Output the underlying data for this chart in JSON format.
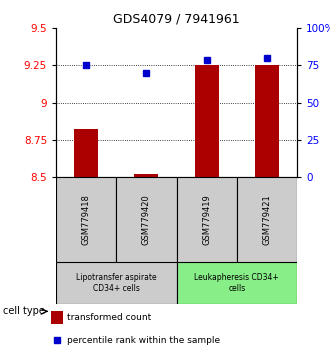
{
  "title": "GDS4079 / 7941961",
  "samples": [
    "GSM779418",
    "GSM779420",
    "GSM779419",
    "GSM779421"
  ],
  "bar_values": [
    8.82,
    8.52,
    9.25,
    9.25
  ],
  "percentile_values": [
    75,
    70,
    79,
    80
  ],
  "ylim_left": [
    8.5,
    9.5
  ],
  "ylim_right": [
    0,
    100
  ],
  "yticks_left": [
    8.5,
    8.75,
    9.0,
    9.25,
    9.5
  ],
  "yticks_right": [
    0,
    25,
    50,
    75,
    100
  ],
  "ytick_labels_left": [
    "8.5",
    "8.75",
    "9",
    "9.25",
    "9.5"
  ],
  "ytick_labels_right": [
    "0",
    "25",
    "50",
    "75",
    "100%"
  ],
  "hlines": [
    8.75,
    9.0,
    9.25
  ],
  "bar_color": "#aa0000",
  "dot_color": "#0000cc",
  "bar_bottom": 8.5,
  "groups": [
    {
      "label": "Lipotransfer aspirate\nCD34+ cells",
      "indices": [
        0,
        1
      ],
      "color": "#cccccc"
    },
    {
      "label": "Leukapheresis CD34+\ncells",
      "indices": [
        2,
        3
      ],
      "color": "#88ee88"
    }
  ],
  "legend_bar_label": "transformed count",
  "legend_dot_label": "percentile rank within the sample",
  "cell_type_label": "cell type"
}
